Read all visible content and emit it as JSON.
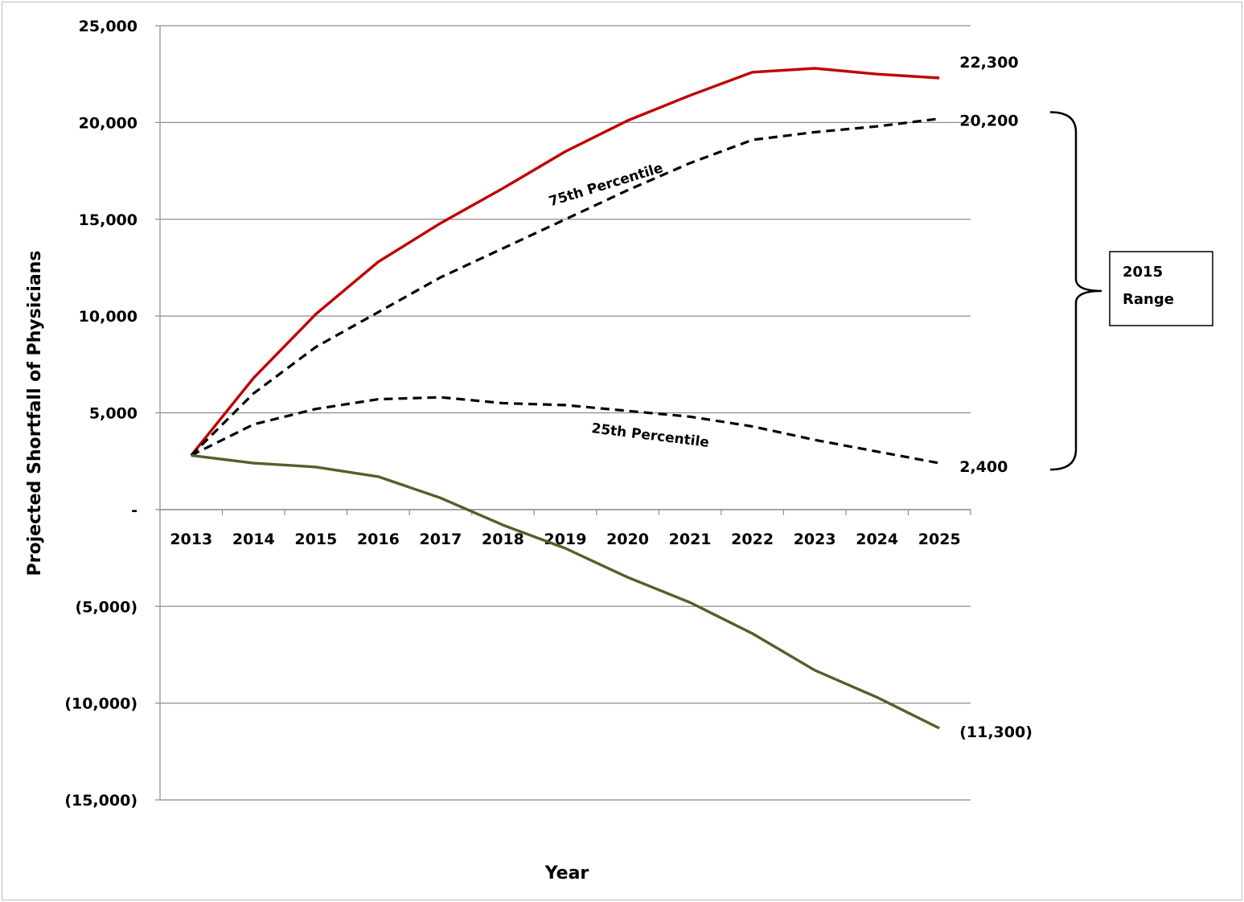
{
  "chart_data": {
    "type": "line",
    "title": "",
    "xlabel": "Year",
    "ylabel": "Projected Shortfall of Physicians",
    "x": [
      2013,
      2014,
      2015,
      2016,
      2017,
      2018,
      2019,
      2020,
      2021,
      2022,
      2023,
      2024,
      2025
    ],
    "x_tick_labels": [
      "2013",
      "2014",
      "2015",
      "2016",
      "2017",
      "2018",
      "2019",
      "2020",
      "2021",
      "2022",
      "2023",
      "2024",
      "2025"
    ],
    "ylim": [
      -15000,
      25000
    ],
    "y_ticks": [
      25000,
      20000,
      15000,
      10000,
      5000,
      0,
      -5000,
      -10000,
      -15000
    ],
    "y_tick_labels": [
      "25,000",
      "20,000",
      "15,000",
      "10,000",
      "5,000",
      "-",
      "(5,000)",
      "(10,000)",
      "(15,000)"
    ],
    "grid": true,
    "legend": "none",
    "series": [
      {
        "color": "#c00000",
        "style": "solid",
        "values": [
          2800,
          6800,
          10100,
          12800,
          14800,
          16600,
          18500,
          20100,
          21400,
          22600,
          22800,
          22500,
          22300
        ],
        "end_label": "22,300"
      },
      {
        "color": "#000000",
        "style": "dashed",
        "values": [
          2800,
          6000,
          8400,
          10200,
          12000,
          13500,
          15000,
          16500,
          17900,
          19100,
          19500,
          19800,
          20200
        ],
        "end_label": "20,200",
        "curve_label": "75th Percentile"
      },
      {
        "color": "#000000",
        "style": "dashed",
        "values": [
          2800,
          4400,
          5200,
          5700,
          5800,
          5500,
          5400,
          5100,
          4800,
          4300,
          3600,
          3000,
          2400
        ],
        "end_label": "2,400",
        "curve_label": "25th Percentile"
      },
      {
        "color": "#4f6228",
        "style": "solid",
        "values": [
          2800,
          2400,
          2200,
          1700,
          600,
          -800,
          -2000,
          -3500,
          -4800,
          -6400,
          -8300,
          -9700,
          -11300
        ],
        "end_label": "(11,300)"
      }
    ],
    "annotations": {
      "range_line1": "2015",
      "range_line2": "Range",
      "range_from": 2400,
      "range_to": 20200
    }
  }
}
